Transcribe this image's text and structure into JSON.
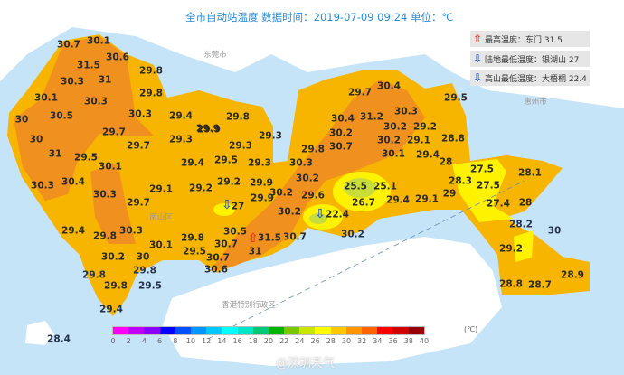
{
  "title": "全市自动站温度  数据时间：2019-07-09 09:24  单位：℃",
  "legend": [
    {
      "icon": "up-arrow-icon",
      "color": "#e03c1e",
      "label": "最高温度：东门 31.5"
    },
    {
      "icon": "down-arrow-icon",
      "color": "#2a5fc8",
      "label": "陆地最低温度：银湖山 27"
    },
    {
      "icon": "down-arrow-icon",
      "color": "#2a5fc8",
      "label": "高山最低温度：大梧桐 22.4"
    }
  ],
  "places": [
    "东莞市",
    "香港特别行政区",
    "南山区",
    "惠州市"
  ],
  "stations": [
    "30.7",
    "30.1",
    "31.5",
    "30.6",
    "29.8",
    "30.3",
    "31",
    "30.1",
    "30.3",
    "29.8",
    "30",
    "30.5",
    "30.3",
    "29.4",
    "29.9",
    "29.7",
    "30",
    "29.3",
    "31",
    "29.7",
    "29.5",
    "29.4",
    "30.1",
    "30.3",
    "30.4",
    "30.3",
    "29.1",
    "29.2",
    "29.7",
    "29.4",
    "29.8",
    "30.3",
    "29.8",
    "30.1",
    "29.5",
    "30.2",
    "30",
    "29.8",
    "29.8",
    "29.8",
    "29.5",
    "29.4",
    "28.4",
    "29.8",
    "29.9",
    "29.3",
    "29.3",
    "29.5",
    "29.3",
    "29.2",
    "29.9",
    "30.2",
    "29.9",
    "27",
    "30.3",
    "29.8",
    "30.2",
    "29.6",
    "22.4",
    "30.5",
    "31.5",
    "30.7",
    "30.7",
    "31",
    "30.7",
    "30.6",
    "30.4",
    "29.7",
    "29.5",
    "30.3",
    "30.4",
    "31.2",
    "30.2",
    "29.2",
    "30.2",
    "30.2",
    "29.1",
    "28.8",
    "30.7",
    "30.1",
    "29.4",
    "28",
    "30.2",
    "25.5",
    "25.1",
    "28.3",
    "29",
    "26.7",
    "29.4",
    "29.1",
    "30.2",
    "27.5",
    "28.1",
    "27.5",
    "27.4",
    "28",
    "28.2",
    "30",
    "29.2",
    "28.9",
    "28.8",
    "28.7"
  ],
  "colorbar": {
    "unit": "(℃)",
    "ticks": [
      "0",
      "2",
      "4",
      "6",
      "8",
      "10",
      "12",
      "14",
      "16",
      "18",
      "20",
      "22",
      "24",
      "26",
      "28",
      "30",
      "32",
      "34",
      "36",
      "38",
      "40"
    ],
    "colors": [
      "#ff00ff",
      "#c000ff",
      "#8a00ff",
      "#0000ff",
      "#0050ff",
      "#0096ff",
      "#00c8ff",
      "#00ffff",
      "#00e6c8",
      "#00c878",
      "#00b400",
      "#78c800",
      "#c8e600",
      "#ffff00",
      "#ffc800",
      "#ff9600",
      "#ff6400",
      "#ff0000",
      "#d20000",
      "#960000"
    ]
  },
  "map_colors": {
    "sea": "#c6e4f8",
    "land": "#ffffff",
    "t29": "#f7b500",
    "t30": "#f0901e",
    "t27": "#fff200",
    "t25": "#c8dc3c"
  },
  "watermark": "@深圳天气"
}
